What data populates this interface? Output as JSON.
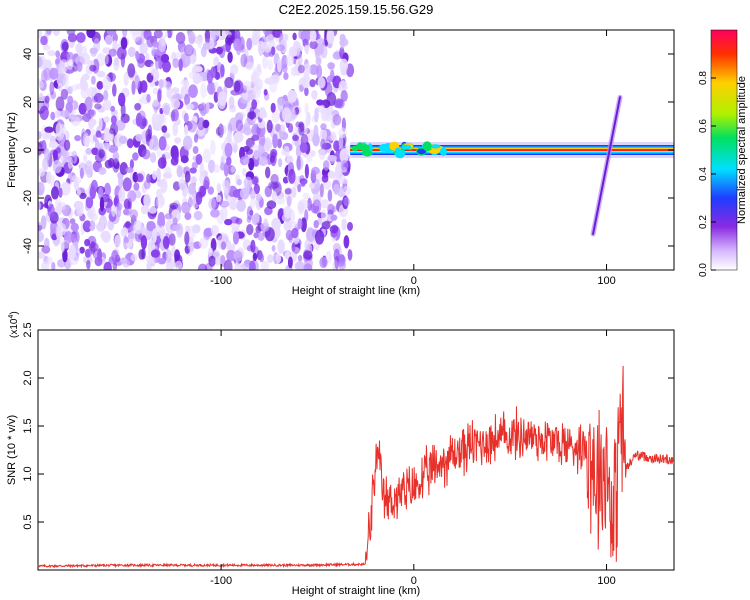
{
  "chart_data": [
    {
      "type": "heatmap",
      "title": "C2E2.2025.159.15.56.G29",
      "xlabel": "Height of straight line (km)",
      "ylabel": "Frequency (Hz)",
      "xlim": [
        -195,
        135
      ],
      "ylim": [
        -50,
        50
      ],
      "x_ticks": [
        -100,
        0,
        100
      ],
      "y_ticks": [
        -40,
        -20,
        0,
        20,
        40
      ],
      "colorbar": {
        "label": "Normalized spectral amplitude",
        "range": [
          0,
          1
        ],
        "ticks": [
          "0.0",
          "0.2",
          "0.4",
          "0.6",
          "0.8"
        ],
        "colormap": [
          "#ffffff",
          "#d6b8ff",
          "#8a2be2",
          "#1e3cff",
          "#00e0ff",
          "#00e060",
          "#b0f000",
          "#ffd000",
          "#ff3000",
          "#ff0060"
        ]
      },
      "features": {
        "noise_region_x": [
          -195,
          -33
        ],
        "signal_line_freq_hz": 0,
        "signal_start_x": -33,
        "signal_end_x": 135,
        "chirp_segment": {
          "x": [
            93,
            107
          ],
          "freq": [
            -35,
            22
          ]
        }
      }
    },
    {
      "type": "line",
      "xlabel": "Height of straight line (km)",
      "ylabel": "SNR (10 * v/v)",
      "y_exponent": "(x10",
      "y_exponent_power": "4",
      "xlim": [
        -195,
        135
      ],
      "ylim": [
        0,
        2.5
      ],
      "x_ticks": [
        -100,
        0,
        100
      ],
      "y_ticks": [
        "0.5",
        "1.0",
        "1.5",
        "2.0",
        "2.5"
      ],
      "series": [
        {
          "color": "#e8302a",
          "x": [
            -195,
            -150,
            -100,
            -60,
            -25,
            -22,
            -19,
            -15,
            -10,
            0,
            10,
            20,
            30,
            40,
            50,
            60,
            70,
            80,
            90,
            95,
            100,
            104,
            107,
            110,
            115,
            125,
            135
          ],
          "y": [
            0.04,
            0.05,
            0.05,
            0.05,
            0.06,
            0.6,
            1.2,
            0.7,
            0.75,
            0.85,
            1.05,
            1.2,
            1.3,
            1.35,
            1.4,
            1.4,
            1.35,
            1.3,
            1.3,
            1.0,
            1.1,
            0.5,
            1.6,
            1.05,
            1.2,
            1.16,
            1.15
          ]
        }
      ]
    }
  ]
}
